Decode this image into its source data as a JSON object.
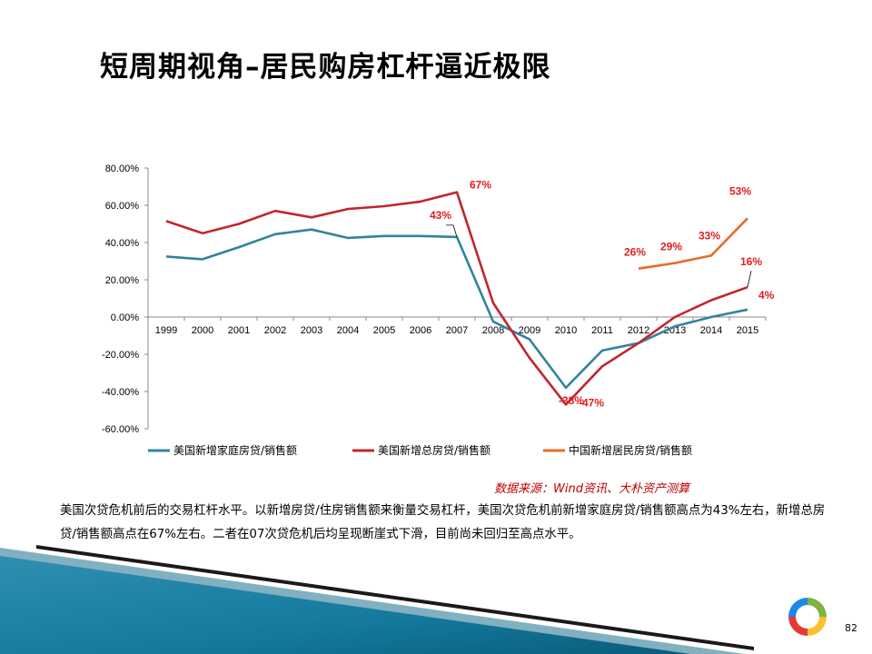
{
  "slide": {
    "title": "短周期视角–居民购房杠杆逼近极限",
    "source": "数据来源：Wind资讯、大朴资产测算",
    "body": "美国次贷危机前后的交易杠杆水平。以新增房贷/住房销售额来衡量交易杠杆，美国次贷危机前新增家庭房贷/销售额高点为43%左右，新增总房贷/销售额高点在67%左右。二者在07次贷危机后均呈现断崖式下滑，目前尚未回归至高点水平。",
    "page_number": "82"
  },
  "chart_data": {
    "type": "line",
    "x": [
      1999,
      2000,
      2001,
      2002,
      2003,
      2004,
      2005,
      2006,
      2007,
      2008,
      2009,
      2010,
      2011,
      2012,
      2013,
      2014,
      2015
    ],
    "ylim": [
      -60,
      80
    ],
    "yticks": [
      "80.00%",
      "60.00%",
      "40.00%",
      "20.00%",
      "0.00%",
      "-20.00%",
      "-40.00%",
      "-60.00%"
    ],
    "ytick_values": [
      80,
      60,
      40,
      20,
      0,
      -20,
      -40,
      -60
    ],
    "grid": false,
    "legend_position": "bottom",
    "series": [
      {
        "name": "美国新增家庭房贷/销售额",
        "color": "#31849b",
        "x": [
          1999,
          2000,
          2001,
          2002,
          2003,
          2004,
          2005,
          2006,
          2007,
          2008,
          2009,
          2010,
          2011,
          2012,
          2013,
          2014,
          2015
        ],
        "values": [
          32.5,
          31,
          37.5,
          44.5,
          47,
          42.5,
          43.5,
          43.5,
          43,
          -2.5,
          -12,
          -38,
          -18,
          -14,
          -5,
          0,
          4
        ]
      },
      {
        "name": "美国新增总房贷/销售额",
        "color": "#c0262f",
        "x": [
          1999,
          2000,
          2001,
          2002,
          2003,
          2004,
          2005,
          2006,
          2007,
          2008,
          2009,
          2010,
          2011,
          2012,
          2013,
          2014,
          2015
        ],
        "values": [
          51.5,
          45,
          50,
          57,
          53.5,
          58,
          59.5,
          62,
          67,
          7.5,
          -22,
          -47,
          -26.5,
          -14,
          0,
          9,
          16
        ]
      },
      {
        "name": "中国新增居民房贷/销售额",
        "color": "#e46c25",
        "x": [
          2012,
          2013,
          2014,
          2015
        ],
        "values": [
          26,
          29,
          33,
          53
        ]
      }
    ],
    "annotations": [
      {
        "text": "67%",
        "x": 2007,
        "y": 67
      },
      {
        "text": "43%",
        "x": 2007,
        "y": 43
      },
      {
        "text": "-38%",
        "x": 2010,
        "y": -38
      },
      {
        "text": "-47%",
        "x": 2010,
        "y": -47
      },
      {
        "text": "26%",
        "x": 2012,
        "y": 26
      },
      {
        "text": "29%",
        "x": 2013,
        "y": 29
      },
      {
        "text": "33%",
        "x": 2014,
        "y": 33
      },
      {
        "text": "53%",
        "x": 2015,
        "y": 53
      },
      {
        "text": "16%",
        "x": 2015,
        "y": 16
      },
      {
        "text": "4%",
        "x": 2015,
        "y": 4
      }
    ]
  }
}
